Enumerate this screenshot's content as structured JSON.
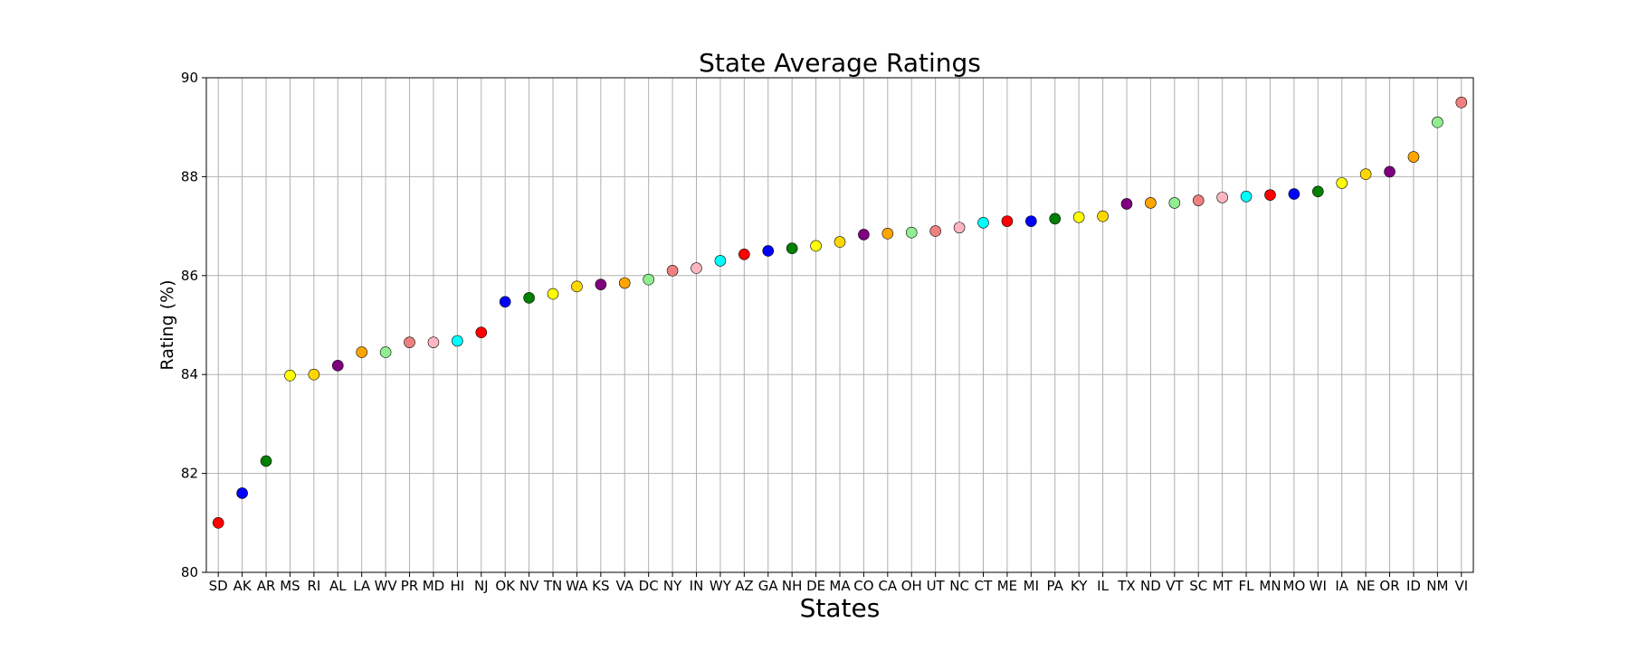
{
  "chart_data": {
    "type": "scatter",
    "title": "State Average Ratings",
    "xlabel": "States",
    "ylabel": "Rating (%)",
    "ylim": [
      80,
      90
    ],
    "yticks": [
      80,
      82,
      84,
      86,
      88,
      90
    ],
    "grid": true,
    "categories": [
      "SD",
      "AK",
      "AR",
      "MS",
      "RI",
      "AL",
      "LA",
      "WV",
      "PR",
      "MD",
      "HI",
      "NJ",
      "OK",
      "NV",
      "TN",
      "WA",
      "KS",
      "VA",
      "DC",
      "NY",
      "IN",
      "WY",
      "AZ",
      "GA",
      "NH",
      "DE",
      "MA",
      "CO",
      "CA",
      "OH",
      "UT",
      "NC",
      "CT",
      "ME",
      "MI",
      "PA",
      "KY",
      "IL",
      "TX",
      "ND",
      "VT",
      "SC",
      "MT",
      "FL",
      "MN",
      "MO",
      "WI",
      "IA",
      "NE",
      "OR",
      "ID",
      "NM",
      "VI"
    ],
    "values": [
      81.0,
      81.6,
      82.25,
      83.98,
      84.0,
      84.18,
      84.45,
      84.45,
      84.65,
      84.65,
      84.68,
      84.85,
      85.47,
      85.55,
      85.63,
      85.78,
      85.82,
      85.85,
      85.92,
      86.1,
      86.15,
      86.3,
      86.43,
      86.5,
      86.55,
      86.6,
      86.68,
      86.83,
      86.85,
      86.87,
      86.9,
      86.97,
      87.07,
      87.1,
      87.1,
      87.15,
      87.18,
      87.2,
      87.45,
      87.47,
      87.47,
      87.52,
      87.58,
      87.6,
      87.63,
      87.65,
      87.7,
      87.87,
      88.05,
      88.1,
      88.4,
      89.1,
      89.5
    ],
    "colors": [
      "#ff0000",
      "#0000ff",
      "#008000",
      "#ffff00",
      "#ffd700",
      "#800080",
      "#ffa500",
      "#90ee90",
      "#f08080",
      "#ffb6c1",
      "#00ffff",
      "#ff0000",
      "#0000ff",
      "#008000",
      "#ffff00",
      "#ffd700",
      "#800080",
      "#ffa500",
      "#90ee90",
      "#f08080",
      "#ffb6c1",
      "#00ffff",
      "#ff0000",
      "#0000ff",
      "#008000",
      "#ffff00",
      "#ffd700",
      "#800080",
      "#ffa500",
      "#90ee90",
      "#f08080",
      "#ffb6c1",
      "#00ffff",
      "#ff0000",
      "#0000ff",
      "#008000",
      "#ffff00",
      "#ffd700",
      "#800080",
      "#ffa500",
      "#90ee90",
      "#f08080",
      "#ffb6c1",
      "#00ffff",
      "#ff0000",
      "#0000ff",
      "#008000",
      "#ffff00",
      "#ffd700",
      "#800080",
      "#ffa500",
      "#90ee90",
      "#f08080"
    ]
  }
}
